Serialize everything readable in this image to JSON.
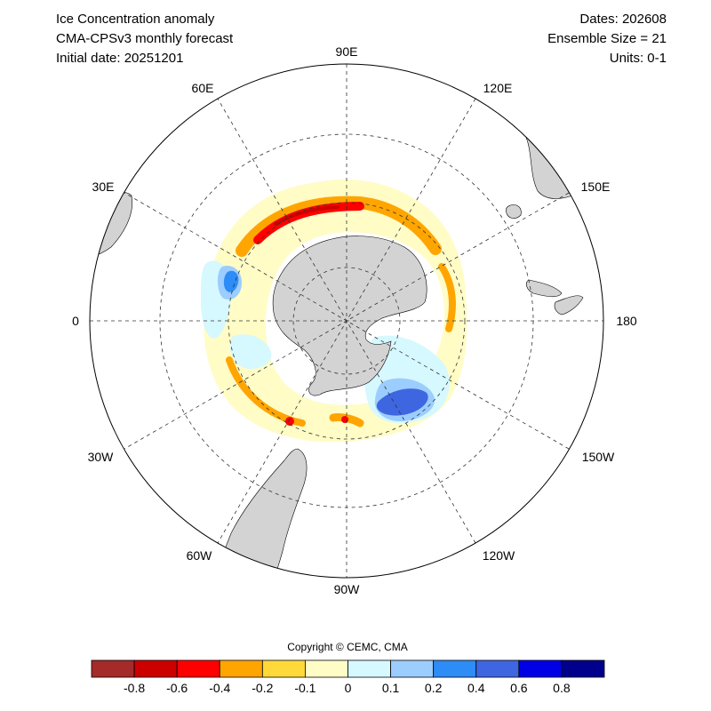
{
  "header": {
    "title": "Ice Concentration anomaly",
    "model": "CMA-CPSv3 monthly forecast",
    "initial_date": "Initial date: 20251201",
    "dates": "Dates: 202608",
    "ensemble": "Ensemble Size = 21",
    "units": "Units: 0-1"
  },
  "map": {
    "projection": "south-polar-stereographic",
    "longitude_labels": [
      "90E",
      "120E",
      "150E",
      "180",
      "150W",
      "120W",
      "90W",
      "60W",
      "30W",
      "0",
      "30E",
      "60E"
    ],
    "graticule": "dashed",
    "land_color": "#d3d3d3"
  },
  "copyright": "Copyright © CEMC, CMA",
  "colorbar": {
    "colors": [
      "#a52a2a",
      "#cd0000",
      "#ff0000",
      "#ffa500",
      "#ffd93a",
      "#fffcc6",
      "#d6f8ff",
      "#9ccdff",
      "#2d8cf5",
      "#3f66e1",
      "#0000e6",
      "#00008c"
    ],
    "labels": [
      "-0.8",
      "-0.6",
      "-0.4",
      "-0.2",
      "-0.1",
      "0",
      "0.1",
      "0.2",
      "0.4",
      "0.6",
      "0.8"
    ]
  }
}
